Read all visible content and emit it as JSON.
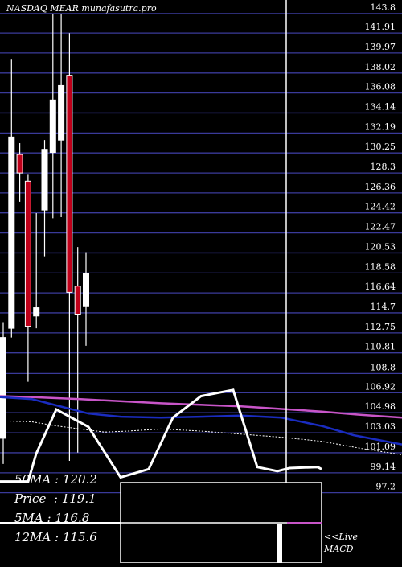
{
  "chart_data": {
    "type": "candlestick",
    "title": "NASDAQ MEAR munafasutra.pro",
    "y_ticks": [
      143.8,
      141.91,
      139.97,
      138.02,
      136.08,
      134.14,
      132.19,
      130.25,
      128.3,
      126.36,
      124.42,
      122.47,
      120.53,
      118.58,
      116.64,
      114.7,
      112.75,
      110.81,
      108.8,
      106.92,
      104.98,
      103.03,
      101.09,
      99.14,
      97.2
    ],
    "ylim": [
      96.0,
      144.5
    ],
    "candles": [
      {
        "open": 102.5,
        "close": 112.3,
        "high": 113.8,
        "low": 100.0,
        "color": "white"
      },
      {
        "open": 113.2,
        "close": 131.8,
        "high": 139.4,
        "low": 112.3,
        "color": "white"
      },
      {
        "open": 130.1,
        "close": 128.3,
        "high": 131.2,
        "low": 125.5,
        "color": "red"
      },
      {
        "open": 127.5,
        "close": 113.4,
        "high": 128.2,
        "low": 108.0,
        "color": "red"
      },
      {
        "open": 114.4,
        "close": 115.2,
        "high": 124.4,
        "low": 113.2,
        "color": "white"
      },
      {
        "open": 124.7,
        "close": 130.6,
        "high": 131.5,
        "low": 120.2,
        "color": "white"
      },
      {
        "open": 130.3,
        "close": 135.4,
        "high": 143.8,
        "low": 123.9,
        "color": "white"
      },
      {
        "open": 131.5,
        "close": 136.8,
        "high": 143.8,
        "low": 124.0,
        "color": "white"
      },
      {
        "open": 137.8,
        "close": 116.7,
        "high": 141.9,
        "low": 100.3,
        "color": "red"
      },
      {
        "open": 117.3,
        "close": 114.5,
        "high": 121.1,
        "low": 101.1,
        "color": "red"
      },
      {
        "open": 115.3,
        "close": 118.5,
        "high": 120.6,
        "low": 111.5,
        "color": "white"
      }
    ],
    "ma_lines": [
      {
        "name": "50MA",
        "color": "#c855c8",
        "x": [
          0,
          40,
          100,
          200,
          300,
          400,
          445,
          500
        ],
        "y": [
          106.6,
          106.5,
          106.3,
          105.9,
          105.6,
          105.1,
          104.8,
          104.5
        ]
      },
      {
        "name": "12MA",
        "color": "#1a2cc0",
        "x": [
          0,
          40,
          70,
          110,
          150,
          200,
          250,
          300,
          350,
          400,
          440,
          500
        ],
        "y": [
          106.5,
          106.3,
          105.7,
          104.9,
          104.6,
          104.5,
          104.6,
          104.7,
          104.5,
          103.7,
          102.8,
          101.9
        ]
      },
      {
        "name": "5MA",
        "color": "#ffffff",
        "dashed": true,
        "x": [
          0,
          40,
          70,
          100,
          130,
          160,
          200,
          250,
          300,
          350,
          400,
          450,
          500
        ],
        "y": [
          104.2,
          104.1,
          103.7,
          103.4,
          103.1,
          103.2,
          103.4,
          103.2,
          102.9,
          102.6,
          102.2,
          101.5,
          100.9
        ]
      }
    ],
    "overlay_line": {
      "color": "#ffffff",
      "x": [
        0,
        35,
        45,
        70,
        110,
        150,
        185,
        215,
        250,
        290,
        320,
        345,
        360,
        395,
        400
      ],
      "y": [
        98.3,
        98.3,
        101.0,
        105.3,
        103.6,
        98.7,
        99.5,
        104.5,
        106.6,
        107.2,
        99.7,
        99.3,
        99.6,
        99.7,
        99.5
      ]
    },
    "stats": [
      {
        "label": "50MA",
        "value": "120.2"
      },
      {
        "label": "Price",
        "value": "119.1"
      },
      {
        "label": "5MA",
        "value": "116.8"
      },
      {
        "label": "12MA",
        "value": "115.6"
      }
    ],
    "macd": {
      "label_line1": "<<Live",
      "label_line2": "MACD"
    }
  }
}
